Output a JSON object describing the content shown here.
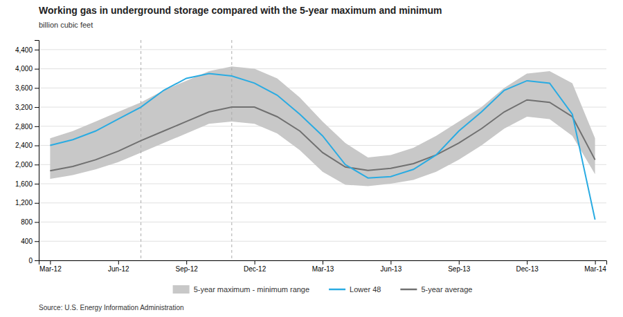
{
  "chart_data": {
    "type": "line",
    "title": "Working gas in underground storage compared with the 5-year maximum and minimum",
    "ylabel": "billion cubic feet",
    "source": "Source:  U.S. Energy Information Administration",
    "categories": [
      "Mar-12",
      null,
      null,
      "Jun-12",
      null,
      null,
      "Sep-12",
      null,
      null,
      "Dec-12",
      null,
      null,
      "Mar-13",
      null,
      null,
      "Jun-13",
      null,
      null,
      "Sep-13",
      null,
      null,
      "Dec-13",
      null,
      null,
      "Mar-14"
    ],
    "series": [
      {
        "name": "5-year maximum - minimum range",
        "type": "area",
        "color": "#c8c8c8",
        "values": [
          2550,
          2700,
          2900,
          3100,
          3300,
          3550,
          3750,
          3950,
          4050,
          4000,
          3800,
          3400,
          2900,
          2450,
          2150,
          2200,
          2350,
          2600,
          2900,
          3200,
          3600,
          3900,
          3950,
          3700,
          2550
        ],
        "lower": [
          1700,
          1780,
          1900,
          2050,
          2250,
          2450,
          2650,
          2850,
          2900,
          2850,
          2650,
          2300,
          1850,
          1580,
          1550,
          1600,
          1680,
          1850,
          2100,
          2400,
          2750,
          3000,
          2950,
          2600,
          1800
        ]
      },
      {
        "name": "Lower 48",
        "type": "line",
        "color": "#29abe2",
        "values": [
          2400,
          2520,
          2700,
          2950,
          3200,
          3550,
          3800,
          3900,
          3850,
          3700,
          3450,
          3050,
          2600,
          2000,
          1720,
          1750,
          1900,
          2200,
          2700,
          3100,
          3550,
          3750,
          3700,
          3050,
          850
        ]
      },
      {
        "name": "5-year average",
        "type": "line",
        "color": "#707070",
        "values": [
          1870,
          1960,
          2100,
          2280,
          2500,
          2700,
          2900,
          3100,
          3200,
          3200,
          3000,
          2700,
          2250,
          1950,
          1880,
          1920,
          2020,
          2200,
          2450,
          2750,
          3100,
          3350,
          3300,
          3000,
          2100
        ]
      }
    ],
    "vlines": [
      4,
      8
    ],
    "ylim": [
      0,
      4600
    ],
    "yticks": [
      0,
      400,
      800,
      {
        "value": 1200,
        "label": "1,200"
      },
      {
        "value": 1600,
        "label": "1,600"
      },
      {
        "value": 2000,
        "label": "2,000"
      },
      {
        "value": 2400,
        "label": "2,400"
      },
      {
        "value": 2800,
        "label": "2,800"
      },
      {
        "value": 3200,
        "label": "3,200"
      },
      {
        "value": 3600,
        "label": "3,600"
      },
      {
        "value": 4000,
        "label": "4,000"
      },
      {
        "value": 4400,
        "label": "4,400"
      }
    ],
    "grid": true,
    "legend": "bottom"
  }
}
